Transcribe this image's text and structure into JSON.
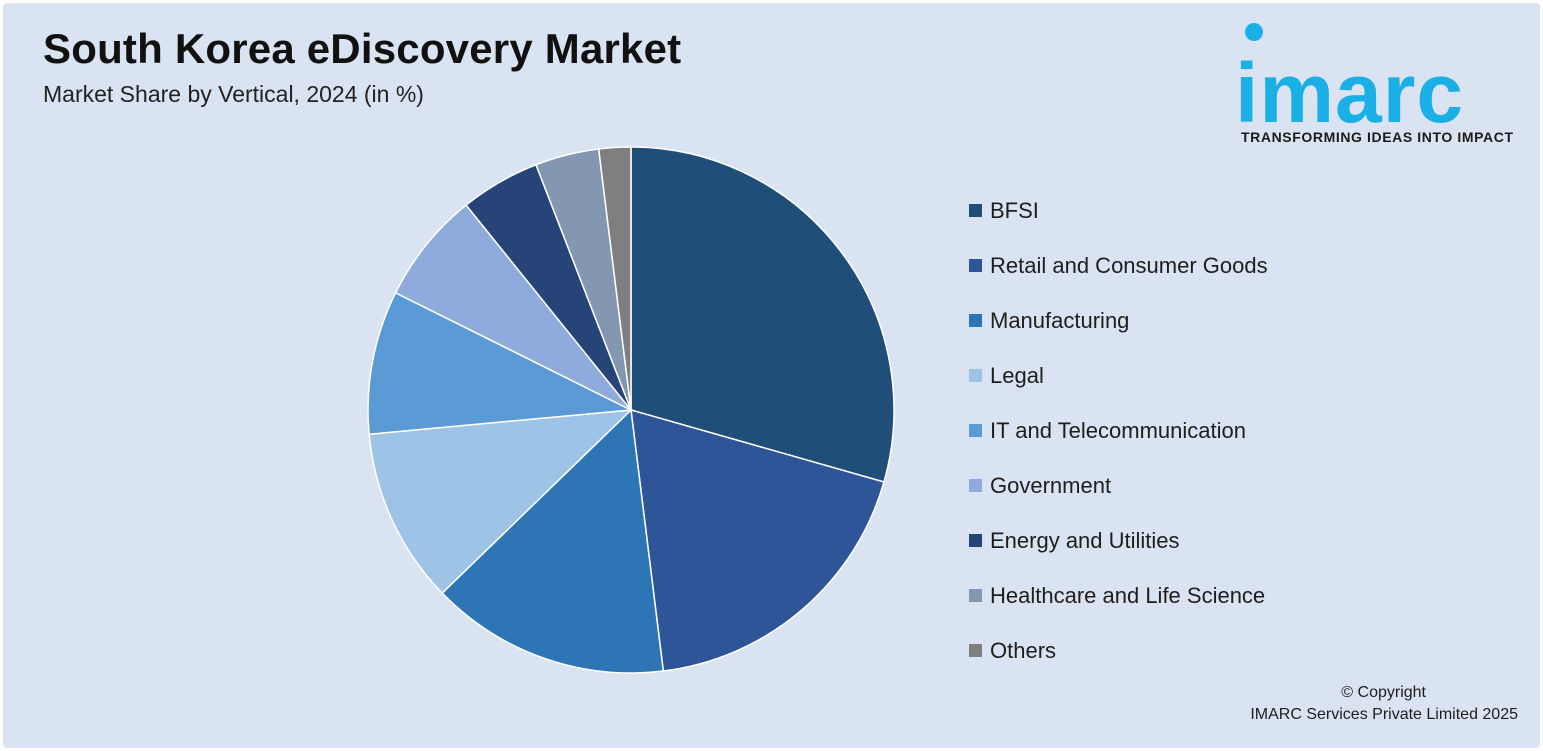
{
  "header": {
    "title": "South Korea eDiscovery Market",
    "subtitle": "Market Share by Vertical, 2024 (in %)"
  },
  "logo": {
    "wordmark": "imarc",
    "tagline": "TRANSFORMING IDEAS INTO IMPACT",
    "color": "#1ab0e6"
  },
  "chart_data": {
    "type": "pie",
    "title": "South Korea eDiscovery Market",
    "subtitle": "Market Share by Vertical, 2024 (in %)",
    "legend_position": "right",
    "start": "12 o'clock, clockwise",
    "slices": [
      {
        "label": "BFSI",
        "value": 30,
        "color": "#1f4e79"
      },
      {
        "label": "Retail and Consumer Goods",
        "value": 19,
        "color": "#2e5597"
      },
      {
        "label": "Manufacturing",
        "value": 15,
        "color": "#2e75b6"
      },
      {
        "label": "Legal",
        "value": 11,
        "color": "#9dc3e6"
      },
      {
        "label": "IT and Telecommunication",
        "value": 9,
        "color": "#5b9bd5"
      },
      {
        "label": "Government",
        "value": 7,
        "color": "#8faadc"
      },
      {
        "label": "Energy and Utilities",
        "value": 5,
        "color": "#264478"
      },
      {
        "label": "Healthcare and Life Science",
        "value": 4,
        "color": "#8497b0"
      },
      {
        "label": "Others",
        "value": 2,
        "color": "#7f7f7f"
      }
    ]
  },
  "footer": {
    "copyright_line1": "© Copyright",
    "copyright_line2": "IMARC Services Private Limited 2025"
  }
}
